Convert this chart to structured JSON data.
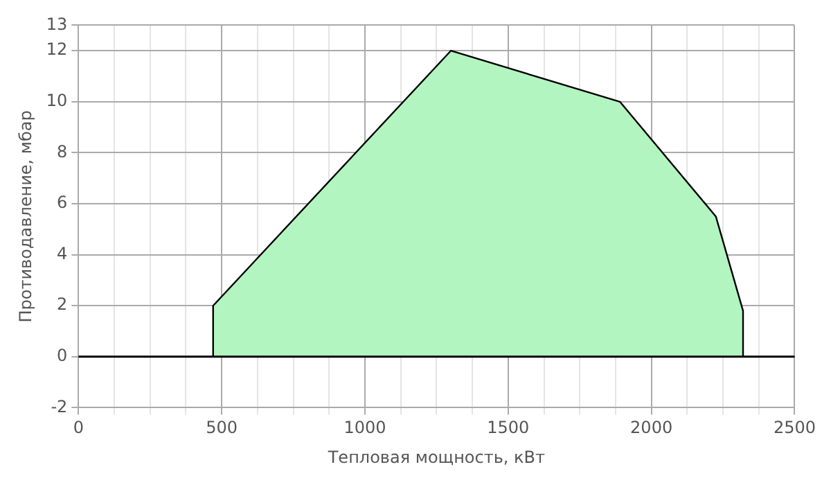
{
  "chart_data": {
    "type": "area",
    "xlabel": "Тепловая мощность, кВт",
    "ylabel": "Противодавление, мбар",
    "x": [
      470,
      470,
      1300,
      1890,
      2225,
      2320,
      2320
    ],
    "series": [
      {
        "color": "#b2f5c0",
        "values": [
          0,
          2,
          12,
          10,
          5.5,
          1.8,
          0
        ]
      }
    ],
    "xlim": [
      0,
      2500
    ],
    "xticks": [
      0,
      {
        "value": 125,
        "label": null
      },
      {
        "value": 250,
        "label": null
      },
      {
        "value": 375,
        "label": null
      },
      500,
      {
        "value": 625,
        "label": null
      },
      {
        "value": 750,
        "label": null
      },
      {
        "value": 875,
        "label": null
      },
      1000,
      {
        "value": 1125,
        "label": null
      },
      {
        "value": 1250,
        "label": null
      },
      {
        "value": 1375,
        "label": null
      },
      1500,
      {
        "value": 1625,
        "label": null
      },
      {
        "value": 1750,
        "label": null
      },
      {
        "value": 1875,
        "label": null
      },
      2000,
      {
        "value": 2125,
        "label": null
      },
      {
        "value": 2250,
        "label": null
      },
      {
        "value": 2375,
        "label": null
      },
      2500
    ],
    "ylim": [
      -2,
      13
    ],
    "yticks": [
      -2,
      0,
      2,
      4,
      6,
      8,
      10,
      12,
      13
    ],
    "ref_lines": [
      {
        "axis": "y",
        "value": 0,
        "color": "#000000"
      }
    ],
    "grid": true,
    "legend": false
  }
}
